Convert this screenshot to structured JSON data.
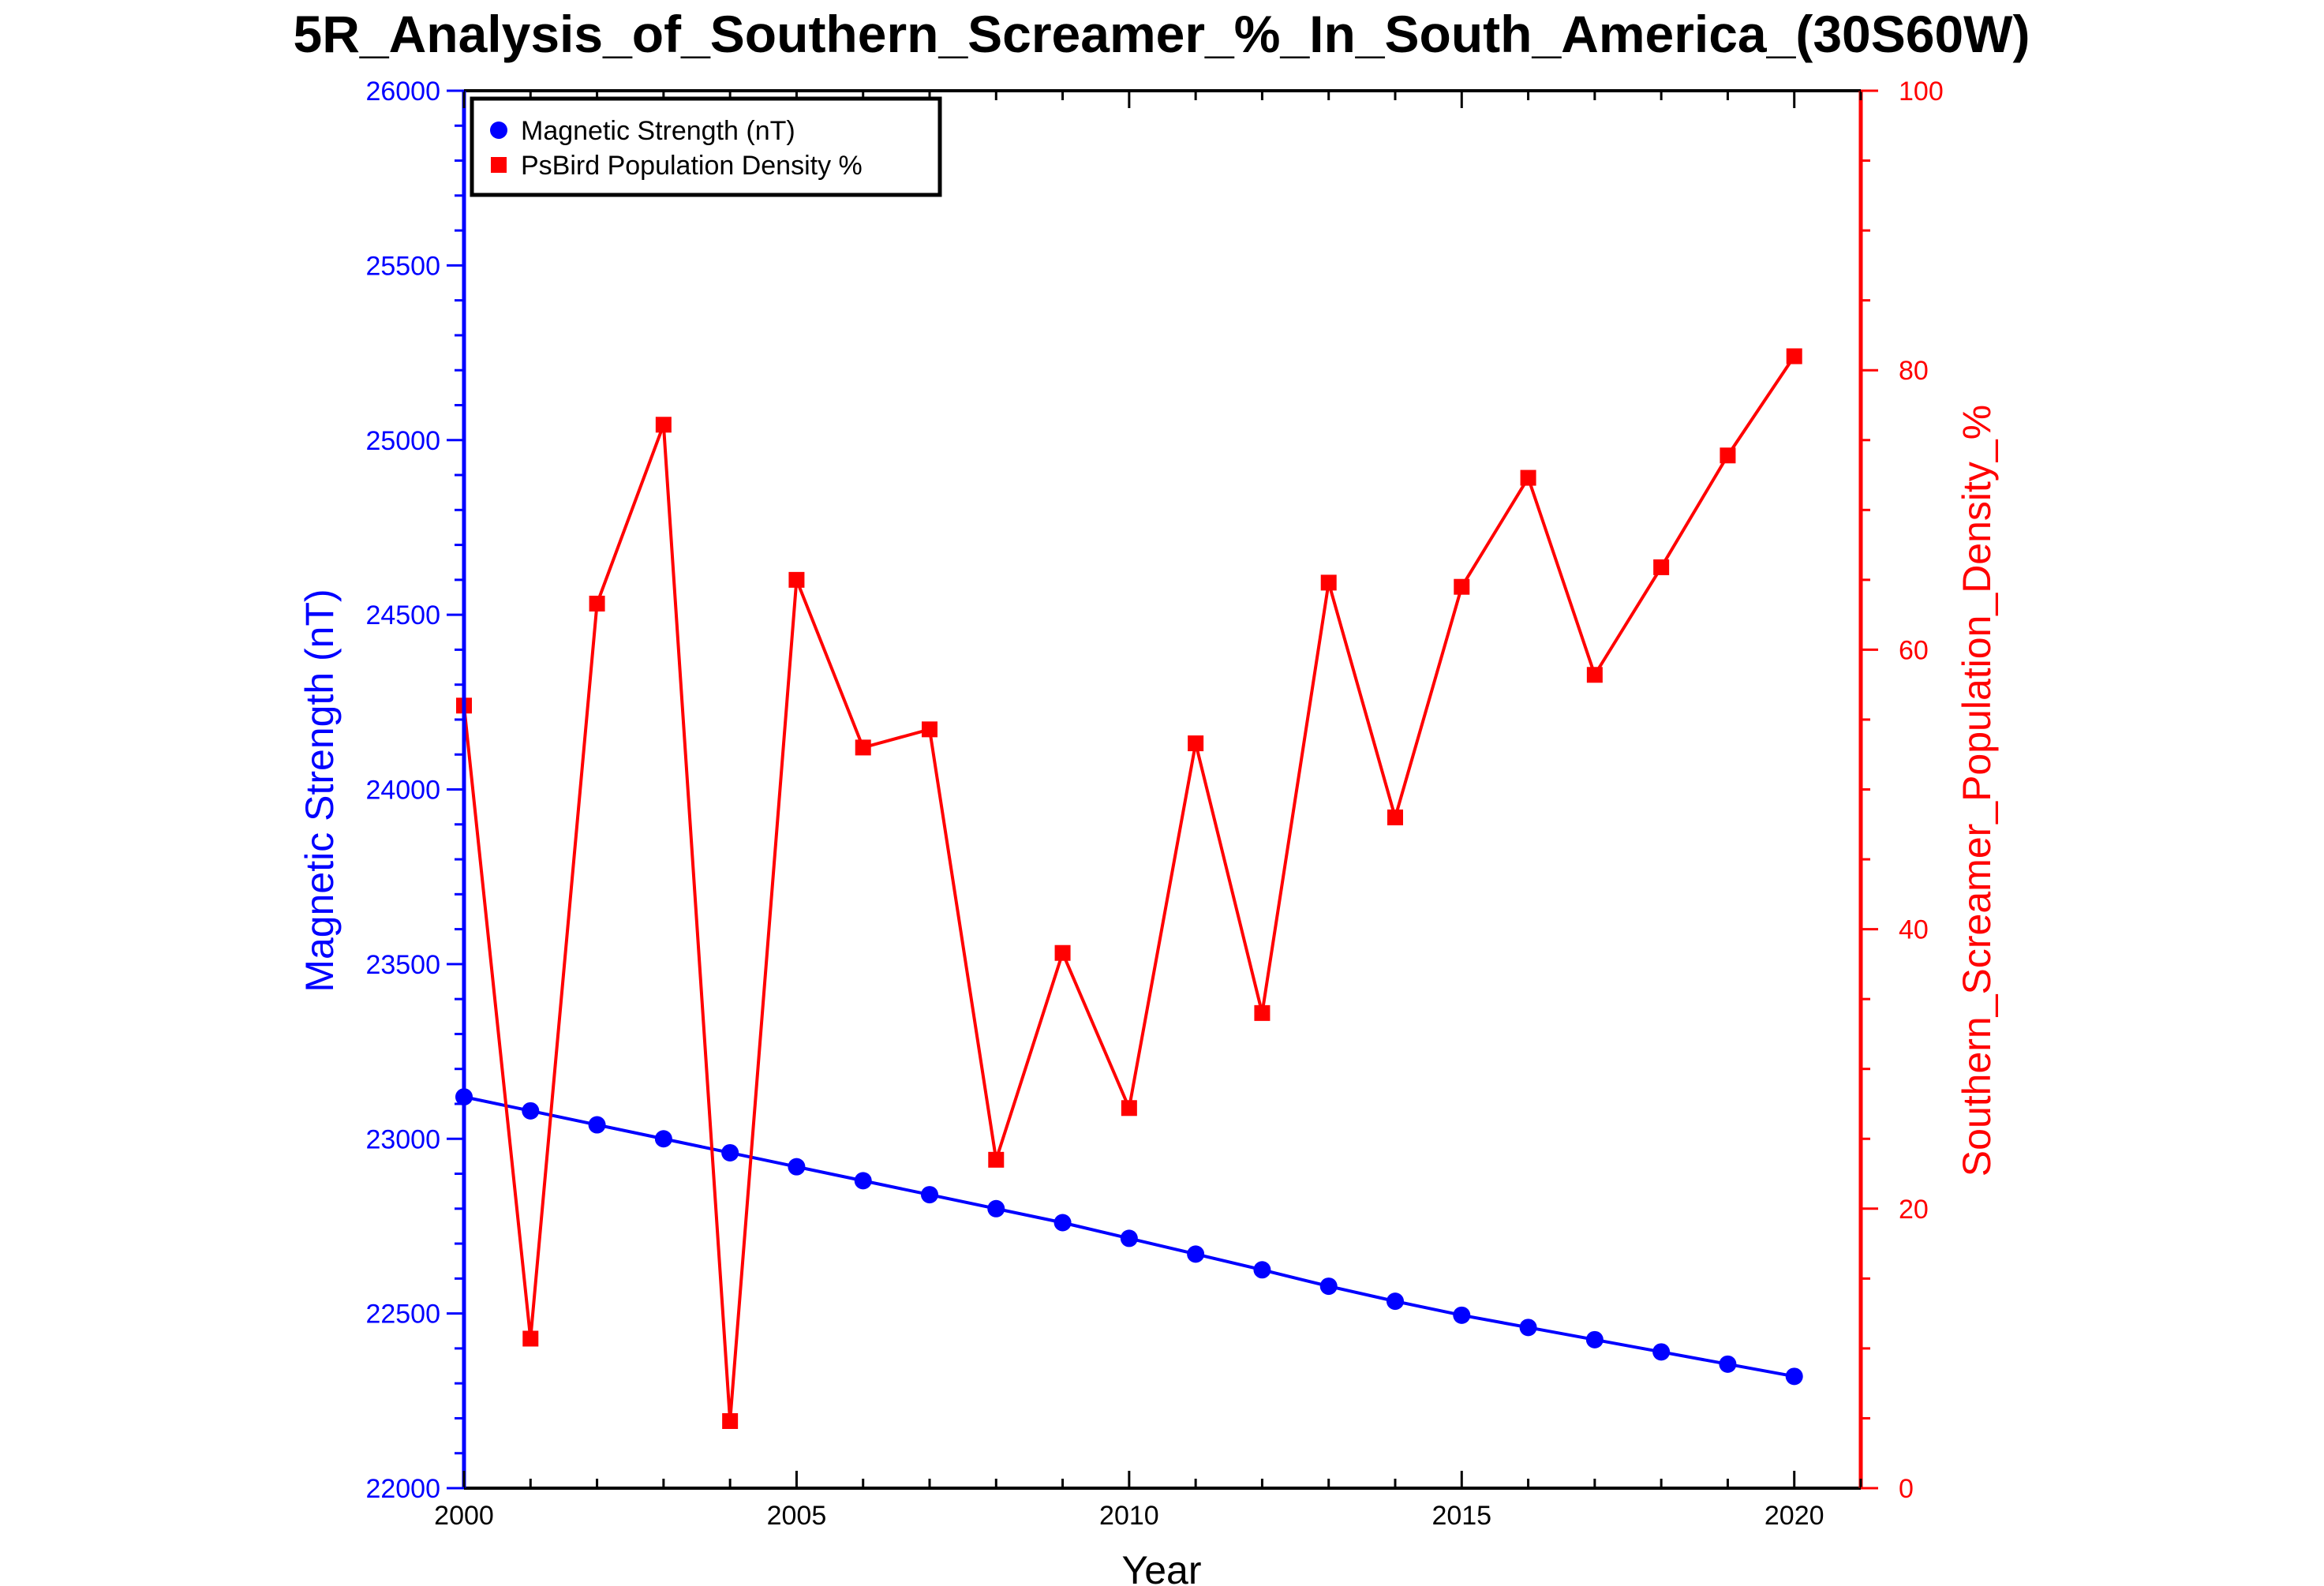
{
  "chart_data": {
    "type": "line",
    "title": "5R_Analysis_of_Southern_Screamer_%_In_South_America_(30S60W)",
    "xlabel": "Year",
    "ylabel_left": "Magnetic Strength (nT)",
    "ylabel_right": "Southern_Screamer_Population_Density_%",
    "xlim": [
      2000,
      2021
    ],
    "ylim_left": [
      22000,
      26000
    ],
    "ylim_right": [
      0,
      100
    ],
    "x_ticks": [
      2000,
      2005,
      2010,
      2015,
      2020
    ],
    "y_left_ticks": [
      22000,
      22500,
      23000,
      23500,
      24000,
      24500,
      25000,
      25500,
      26000
    ],
    "y_right_ticks": [
      0,
      20,
      40,
      60,
      80,
      100
    ],
    "legend_position": "top-left",
    "grid": false,
    "x": [
      2000,
      2001,
      2002,
      2003,
      2004,
      2005,
      2006,
      2007,
      2008,
      2009,
      2010,
      2011,
      2012,
      2013,
      2014,
      2015,
      2016,
      2017,
      2018,
      2019,
      2020
    ],
    "series": [
      {
        "name": "Magnetic Strength (nT)",
        "axis": "left",
        "color": "#0000ff",
        "marker": "circle",
        "values": [
          23120,
          23080,
          23040,
          23000,
          22960,
          22920,
          22880,
          22840,
          22800,
          22760,
          22715,
          22670,
          22625,
          22578,
          22535,
          22495,
          22460,
          22425,
          22390,
          22355,
          22320
        ]
      },
      {
        "name": "PsBird Population Density %",
        "axis": "right",
        "color": "#ff0000",
        "marker": "square",
        "values": [
          56.0,
          10.7,
          63.3,
          76.1,
          4.8,
          65.0,
          53.0,
          54.3,
          23.5,
          38.3,
          27.2,
          53.3,
          34.0,
          64.8,
          48.0,
          64.5,
          72.3,
          58.2,
          65.9,
          73.9,
          81.0
        ]
      }
    ]
  }
}
